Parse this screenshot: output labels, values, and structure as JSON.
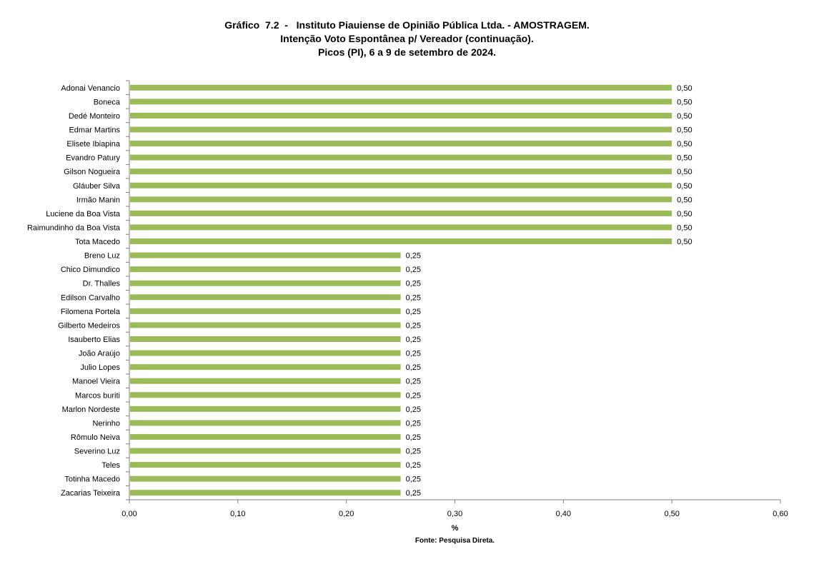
{
  "chart_data": {
    "type": "bar",
    "orientation": "horizontal",
    "title_lines": [
      "Gráfico  7.2  -   Instituto Piauiense de Opinião Pública Ltda. - AMOSTRAGEM.",
      "Intenção Voto Espontânea p/ Vereador (continuação).",
      "Picos (PI), 6 a 9 de setembro de 2024."
    ],
    "categories": [
      "Adonai Venancio",
      "Boneca",
      "Dedé Monteiro",
      "Edmar Martins",
      "Elisete Ibiapina",
      "Evandro Patury",
      "Gilson Nogueira",
      "Gláuber Silva",
      "Irmão Manin",
      "Luciene da Boa Vista",
      "Raimundinho da Boa Vista",
      "Tota Macedo",
      "Breno Luz",
      "Chico Dimundico",
      "Dr. Thalles",
      "Edilson Carvalho",
      "Filomena Portela",
      "Gilberto Medeiros",
      "Isauberto Elias",
      "João Araújo",
      "Julio Lopes",
      "Manoel Vieira",
      "Marcos buriti",
      "Marlon Nordeste",
      "Nerinho",
      "Rômulo Neiva",
      "Severino Luz",
      "Teles",
      "Totinha Macedo",
      "Zacarias Teixeira"
    ],
    "values": [
      0.5,
      0.5,
      0.5,
      0.5,
      0.5,
      0.5,
      0.5,
      0.5,
      0.5,
      0.5,
      0.5,
      0.5,
      0.25,
      0.25,
      0.25,
      0.25,
      0.25,
      0.25,
      0.25,
      0.25,
      0.25,
      0.25,
      0.25,
      0.25,
      0.25,
      0.25,
      0.25,
      0.25,
      0.25,
      0.25
    ],
    "value_labels": [
      "0,50",
      "0,50",
      "0,50",
      "0,50",
      "0,50",
      "0,50",
      "0,50",
      "0,50",
      "0,50",
      "0,50",
      "0,50",
      "0,50",
      "0,25",
      "0,25",
      "0,25",
      "0,25",
      "0,25",
      "0,25",
      "0,25",
      "0,25",
      "0,25",
      "0,25",
      "0,25",
      "0,25",
      "0,25",
      "0,25",
      "0,25",
      "0,25",
      "0,25",
      "0,25"
    ],
    "xlim": [
      0,
      0.6
    ],
    "xticks": [
      0,
      0.1,
      0.2,
      0.3,
      0.4,
      0.5,
      0.6
    ],
    "xtick_labels": [
      "0,00",
      "0,10",
      "0,20",
      "0,30",
      "0,40",
      "0,50",
      "0,60"
    ],
    "xlabel": "%",
    "ylabel": "",
    "grid": false,
    "legend": "none",
    "bar_color": "#9bbb59",
    "source": "Fonte: Pesquisa Direta."
  }
}
